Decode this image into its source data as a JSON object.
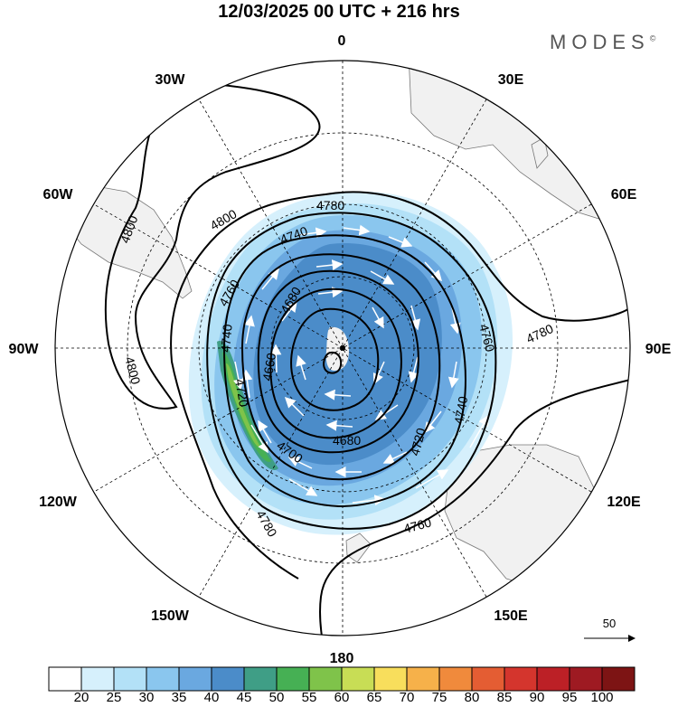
{
  "title": "12/03/2025  00 UTC  + 216 hrs",
  "brand": "MODES",
  "brand_mark": "©",
  "meridian_labels": [
    "0",
    "30E",
    "60E",
    "90E",
    "120E",
    "150E",
    "180",
    "150W",
    "120W",
    "90W",
    "60W",
    "30W"
  ],
  "contour_labels": [
    "4800",
    "4800",
    "4800",
    "4780",
    "4780",
    "4780",
    "4760",
    "4760",
    "4760",
    "4740",
    "4740",
    "4740",
    "4720",
    "4720",
    "4700",
    "4680",
    "4680",
    "4660"
  ],
  "wind_vector_ref": "50",
  "colorbar": {
    "ticks": [
      "20",
      "25",
      "30",
      "35",
      "40",
      "45",
      "50",
      "55",
      "60",
      "65",
      "70",
      "75",
      "80",
      "85",
      "90",
      "95",
      "100"
    ],
    "colors": [
      "#ffffff",
      "#d6f0fc",
      "#b3e1f7",
      "#8ac6ee",
      "#6aa8e0",
      "#4b8cc9",
      "#3f9e86",
      "#46b054",
      "#7fc34a",
      "#c8dd55",
      "#f8de5c",
      "#f6b14a",
      "#f08a3c",
      "#e45d33",
      "#d4352d",
      "#bc2026",
      "#9e1a22",
      "#7d1414"
    ]
  }
}
